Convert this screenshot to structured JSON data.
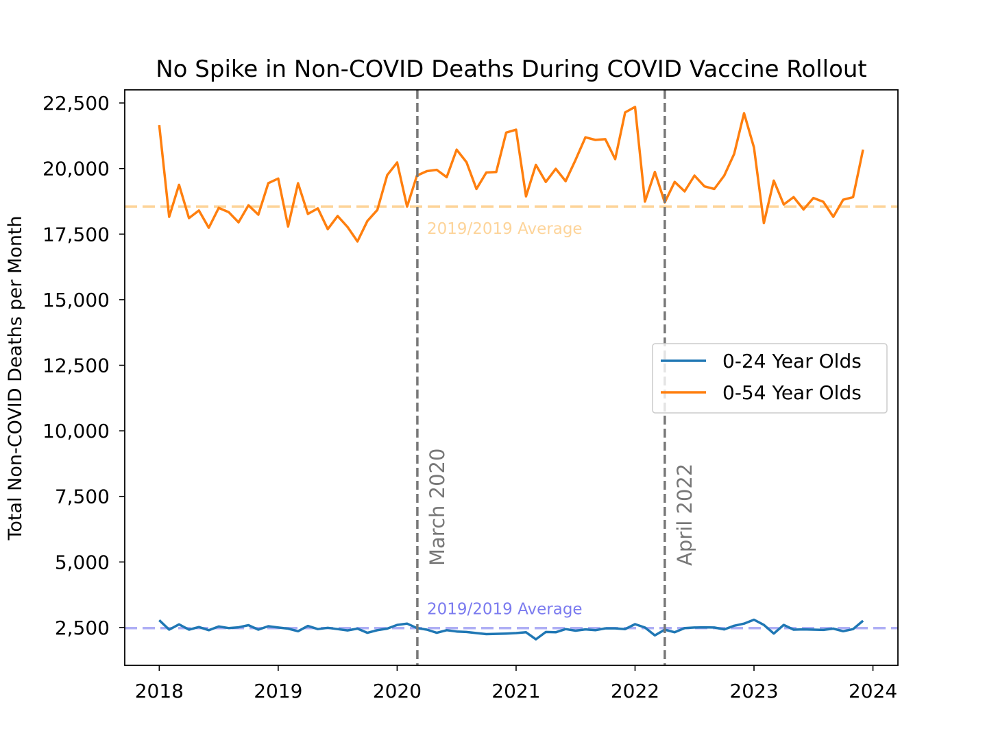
{
  "chart_data": {
    "type": "line",
    "title": "No Spike in Non-COVID Deaths During COVID Vaccine Rollout",
    "xlabel": "",
    "ylabel": "Total Non-COVID Deaths per Month",
    "xlim": [
      2017.71,
      2024.21
    ],
    "ylim": [
      1060,
      23000
    ],
    "x_start": 2018.0,
    "x_step": 0.08333,
    "xticks": [
      2018,
      2019,
      2020,
      2021,
      2022,
      2023,
      2024
    ],
    "xtick_labels": [
      "2018",
      "2019",
      "2020",
      "2021",
      "2022",
      "2023",
      "2024"
    ],
    "yticks": [
      2500,
      5000,
      7500,
      10000,
      12500,
      15000,
      17500,
      20000,
      22500
    ],
    "ytick_labels": [
      "2,500",
      "5,000",
      "7,500",
      "10,000",
      "12,500",
      "15,000",
      "17,500",
      "20,000",
      "22,500"
    ],
    "grid": false,
    "legend_position": "center-right",
    "series": [
      {
        "name": "0-24 Year Olds",
        "color": "#1f77b4",
        "values": [
          2780,
          2420,
          2620,
          2420,
          2520,
          2400,
          2540,
          2480,
          2510,
          2590,
          2420,
          2550,
          2500,
          2460,
          2360,
          2560,
          2440,
          2490,
          2440,
          2390,
          2460,
          2300,
          2400,
          2460,
          2600,
          2650,
          2480,
          2420,
          2300,
          2400,
          2350,
          2330,
          2290,
          2250,
          2260,
          2270,
          2290,
          2320,
          2050,
          2330,
          2320,
          2440,
          2380,
          2430,
          2400,
          2470,
          2470,
          2440,
          2630,
          2500,
          2200,
          2420,
          2320,
          2480,
          2500,
          2510,
          2500,
          2430,
          2570,
          2650,
          2800,
          2600,
          2270,
          2600,
          2420,
          2430,
          2420,
          2410,
          2460,
          2360,
          2440,
          2760
        ]
      },
      {
        "name": "0-54 Year Olds",
        "color": "#ff7f0e",
        "values": [
          21660,
          18160,
          19380,
          18110,
          18400,
          17740,
          18500,
          18340,
          17950,
          18600,
          18240,
          19440,
          19620,
          17790,
          19440,
          18270,
          18480,
          17690,
          18190,
          17770,
          17220,
          18000,
          18420,
          19750,
          20230,
          18550,
          19730,
          19900,
          19950,
          19670,
          20720,
          20240,
          19220,
          19850,
          19870,
          21370,
          21480,
          18940,
          20140,
          19490,
          19990,
          19520,
          20330,
          21190,
          21090,
          21120,
          20360,
          22140,
          22350,
          18740,
          19870,
          18710,
          19490,
          19130,
          19730,
          19320,
          19220,
          19730,
          20560,
          22110,
          20800,
          17920,
          19540,
          18630,
          18910,
          18440,
          18880,
          18730,
          18160,
          18810,
          18910,
          20720
        ]
      }
    ],
    "reference_lines": [
      {
        "type": "horizontal",
        "value": 18550,
        "label": "2019/2019 Average",
        "color": "#fdd49a"
      },
      {
        "type": "horizontal",
        "value": 2480,
        "label": "2019/2019 Average",
        "color": "#7b7bef"
      },
      {
        "type": "vertical",
        "value": 2020.17,
        "label": "March 2020",
        "color": "#777777"
      },
      {
        "type": "vertical",
        "value": 2022.25,
        "label": "April 2022",
        "color": "#777777"
      }
    ]
  }
}
